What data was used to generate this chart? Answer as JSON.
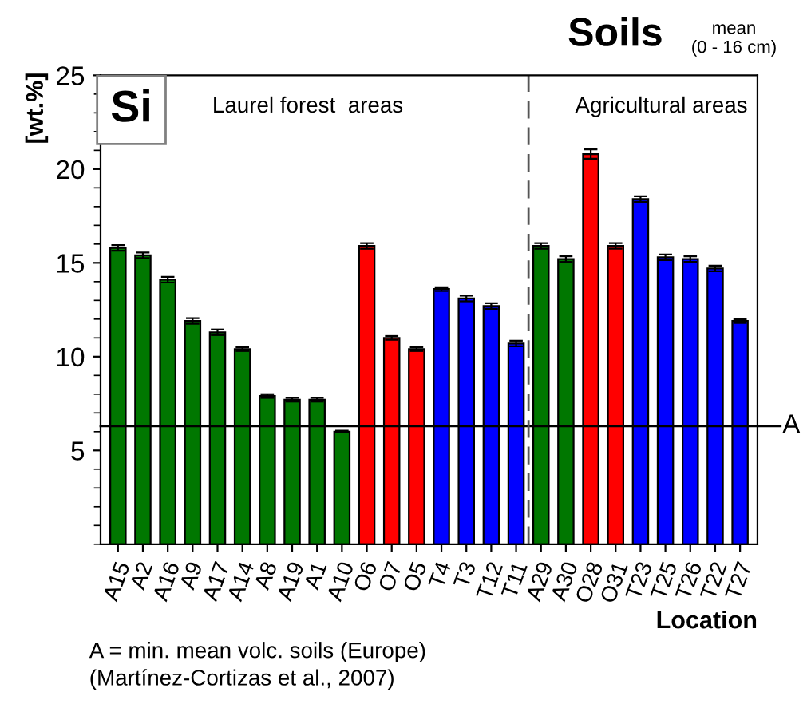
{
  "chart_data": {
    "type": "bar",
    "title": "Soils",
    "subtitle": "mean\n(0 - 16 cm)",
    "xlabel": "Location",
    "ylabel": "[wt.%]",
    "categories": [
      "A15",
      "A2",
      "A16",
      "A9",
      "A17",
      "A14",
      "A8",
      "A19",
      "A1",
      "A10",
      "O6",
      "O7",
      "O5",
      "T4",
      "T3",
      "T12",
      "T11",
      "A29",
      "A30",
      "O28",
      "O31",
      "T23",
      "T25",
      "T26",
      "T22",
      "T27"
    ],
    "values": [
      15.8,
      15.4,
      14.1,
      11.9,
      11.3,
      10.4,
      7.9,
      7.7,
      7.7,
      6.0,
      15.9,
      11.0,
      10.4,
      13.6,
      13.1,
      12.7,
      10.7,
      15.9,
      15.2,
      20.8,
      15.9,
      18.4,
      15.3,
      15.2,
      14.7,
      11.9
    ],
    "errors": [
      0.15,
      0.15,
      0.15,
      0.15,
      0.15,
      0.1,
      0.1,
      0.1,
      0.1,
      0.05,
      0.15,
      0.1,
      0.1,
      0.1,
      0.15,
      0.15,
      0.15,
      0.15,
      0.15,
      0.25,
      0.15,
      0.15,
      0.15,
      0.15,
      0.15,
      0.1
    ],
    "colors": [
      "#007700",
      "#007700",
      "#007700",
      "#007700",
      "#007700",
      "#007700",
      "#007700",
      "#007700",
      "#007700",
      "#007700",
      "#ff0000",
      "#ff0000",
      "#ff0000",
      "#0000ff",
      "#0000ff",
      "#0000ff",
      "#0000ff",
      "#007700",
      "#007700",
      "#ff0000",
      "#ff0000",
      "#0000ff",
      "#0000ff",
      "#0000ff",
      "#0000ff",
      "#0000ff"
    ],
    "ylim": [
      0,
      25
    ],
    "yticks": [
      5,
      10,
      15,
      20,
      25
    ],
    "grid": false,
    "legend": false,
    "ref_lines": [
      {
        "axis": "y",
        "value": 6.3,
        "label": "A",
        "color": "#000000",
        "line_style": "solid"
      }
    ],
    "annotations": [
      "Si",
      "Laurel forest  areas",
      "Agricultural areas",
      "A = min. mean volc. soils (Europe)\n(Martínez-Cortizas et al., 2007)"
    ]
  }
}
